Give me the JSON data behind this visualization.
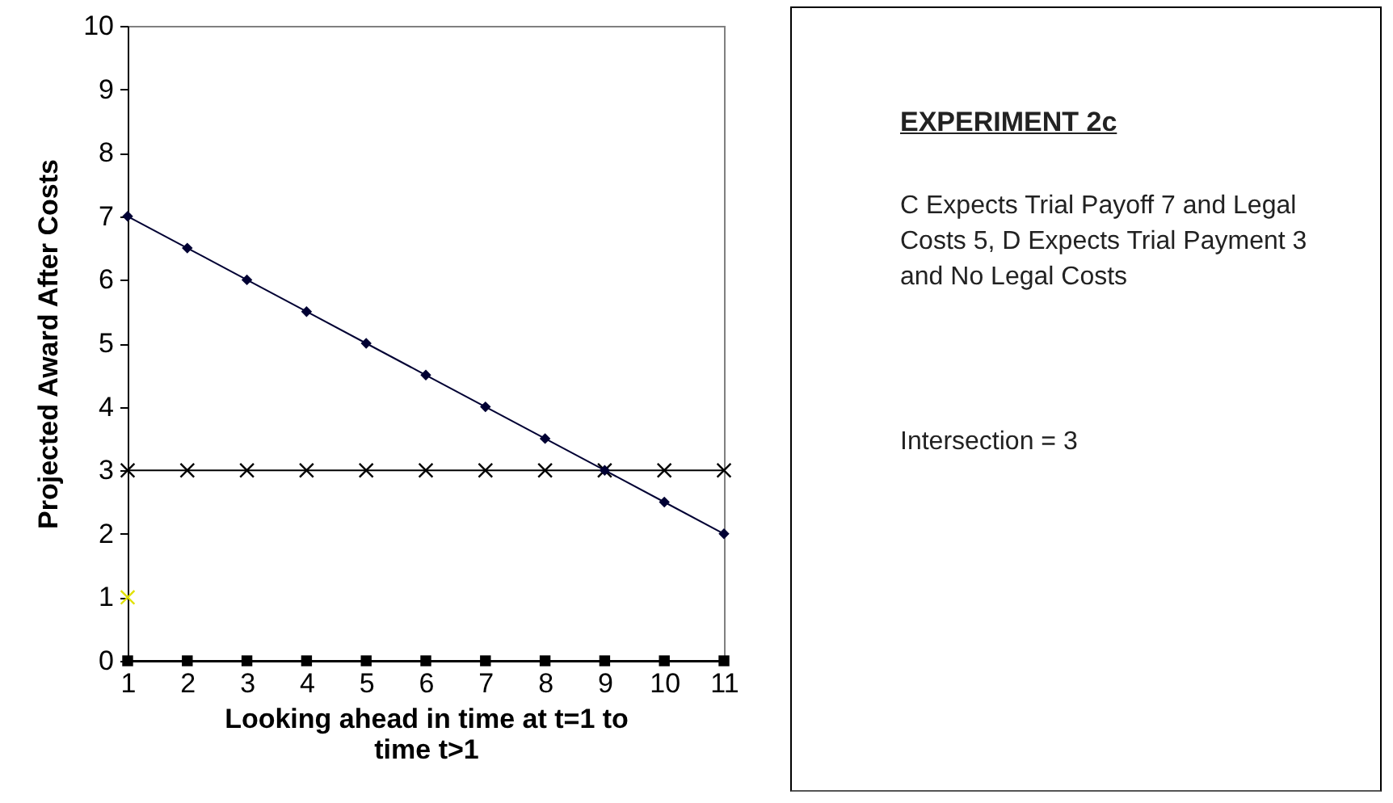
{
  "chart_data": {
    "type": "line",
    "title": "EXPERIMENT 2c",
    "subtitle": "C Expects Trial Payoff 7 and Legal Costs 5, D Expects Trial Payment 3 and No Legal Costs",
    "annotations": [
      "Intersection = 3"
    ],
    "xlabel": "Looking ahead in time at t=1 to time t>1",
    "ylabel": "Projected Award After Costs",
    "x": [
      1,
      2,
      3,
      4,
      5,
      6,
      7,
      8,
      9,
      10,
      11
    ],
    "xlim": [
      1,
      11
    ],
    "xticks": [
      1,
      2,
      3,
      4,
      5,
      6,
      7,
      8,
      9,
      10,
      11
    ],
    "ylim": [
      0,
      10
    ],
    "yticks": [
      0,
      1,
      2,
      3,
      4,
      5,
      6,
      7,
      8,
      9,
      10
    ],
    "grid": false,
    "series": [
      {
        "color": "#000033",
        "marker": "diamond",
        "values": [
          7,
          6.5,
          6,
          5.5,
          5,
          4.5,
          4,
          3.5,
          3,
          2.5,
          2
        ]
      },
      {
        "color": "#000000",
        "marker": "cross",
        "values": [
          3,
          3,
          3,
          3,
          3,
          3,
          3,
          3,
          3,
          3,
          3
        ]
      },
      {
        "color": "#000000",
        "marker": "square",
        "values": [
          0,
          0,
          0,
          0,
          0,
          0,
          0,
          0,
          0,
          0,
          0
        ]
      },
      {
        "type": "scatter",
        "color": "#e0e000",
        "marker": "cross",
        "x": [
          1
        ],
        "values": [
          1
        ]
      }
    ]
  }
}
